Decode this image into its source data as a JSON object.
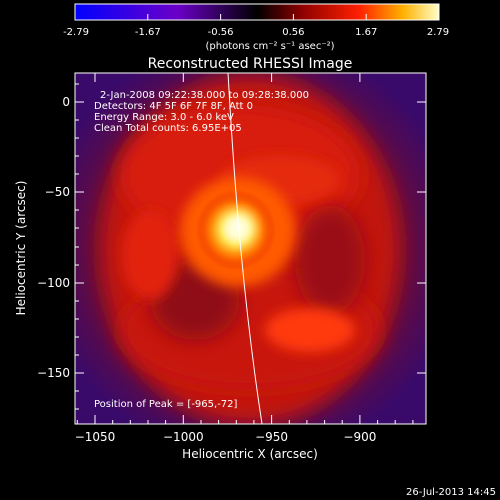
{
  "colorbar": {
    "ticks": [
      "-2.79",
      "-1.67",
      "-0.56",
      "0.56",
      "1.67",
      "2.79"
    ],
    "unit_label": "(photons cm⁻² s⁻¹ asec⁻²)"
  },
  "plot": {
    "title": "Reconstructed RHESSI Image",
    "x_axis_label": "Heliocentric X (arcsec)",
    "y_axis_label": "Heliocentric Y (arcsec)",
    "x_ticks": [
      "−1050",
      "−1000",
      "−950",
      "−900"
    ],
    "y_ticks": [
      "0",
      "−50",
      "−100",
      "−150"
    ],
    "info_line_1": "2-Jan-2008 09:22:38.000 to 09:28:38.000",
    "info_line_2": "Detectors: 4F 5F 6F 7F 8F, Att 0",
    "info_line_3": "Energy Range: 3.0 - 6.0 keV",
    "info_line_4": "Clean    Total counts: 6.95E+05",
    "peak_position": "Position of Peak = [-965,-72]"
  },
  "footer": {
    "timestamp": "26-Jul-2013 14:45"
  },
  "colors": {
    "background": "#000000",
    "text": "#ffffff",
    "limb_line": "#ffffff"
  }
}
